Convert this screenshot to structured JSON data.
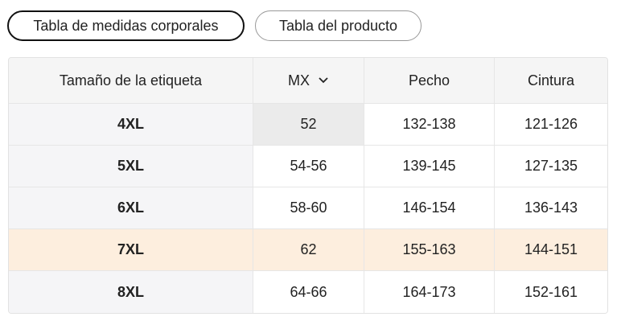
{
  "tabs": [
    "Tabla de medidas corporales",
    "Tabla del producto"
  ],
  "table": {
    "headers": [
      "Tamaño de la etiqueta",
      "MX",
      "Pecho",
      "Cintura"
    ],
    "rows": [
      [
        "4XL",
        "52",
        "132-138",
        "121-126"
      ],
      [
        "5XL",
        "54-56",
        "139-145",
        "127-135"
      ],
      [
        "6XL",
        "58-60",
        "146-154",
        "136-143"
      ],
      [
        "7XL",
        "62",
        "155-163",
        "144-151"
      ],
      [
        "8XL",
        "64-66",
        "164-173",
        "152-161"
      ]
    ]
  }
}
